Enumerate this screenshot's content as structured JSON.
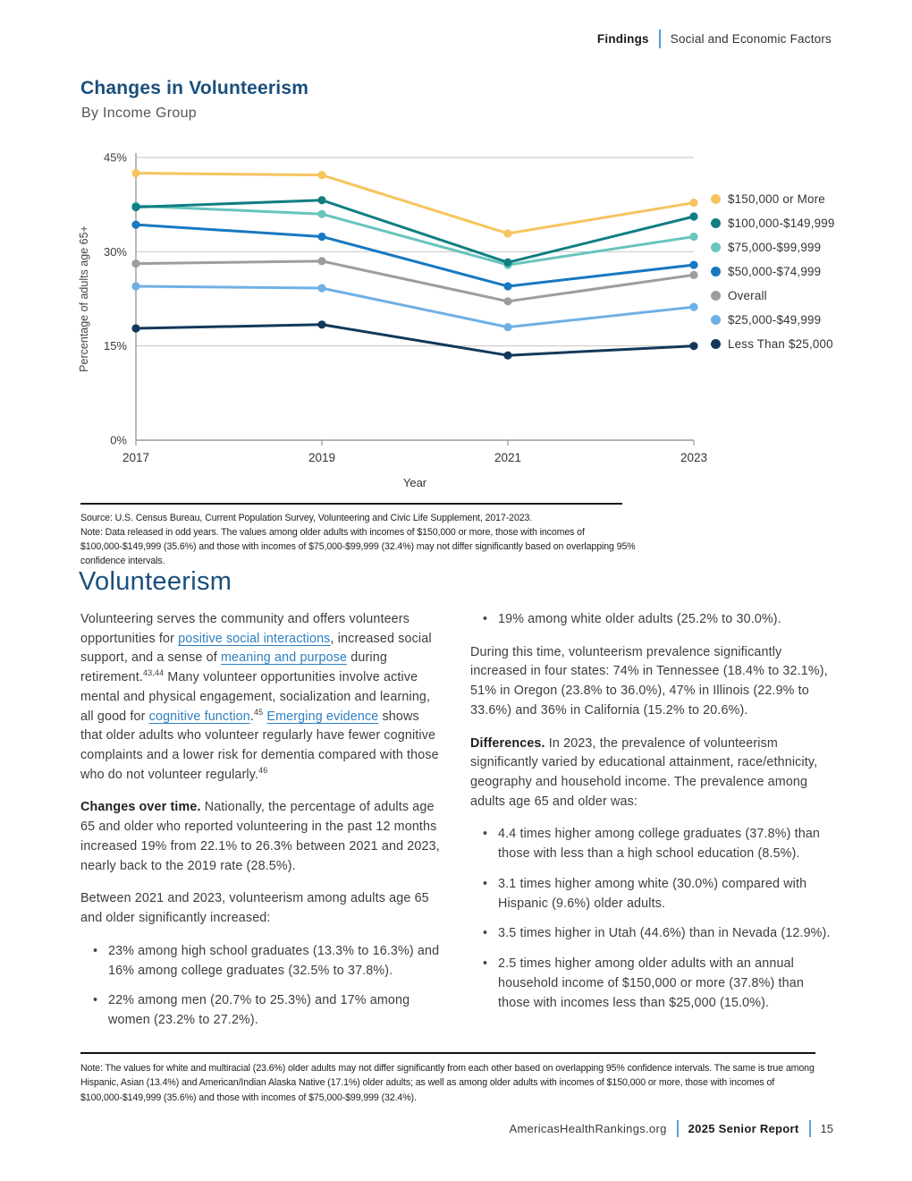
{
  "header": {
    "section": "Findings",
    "subsection": "Social and Economic Factors"
  },
  "chart": {
    "title": "Changes in Volunteerism",
    "subtitle": "By Income Group",
    "source_line": "Source: U.S. Census Bureau, Current Population Survey, Volunteering and Civic Life Supplement, 2017-2023.",
    "note_line": "Note: Data released in odd years. The values among older adults with incomes of $150,000 or more, those with incomes of $100,000-$149,999 (35.6%) and those with incomes of $75,000-$99,999 (32.4%) may not differ significantly based on overlapping 95% confidence intervals."
  },
  "chart_data": {
    "type": "line",
    "x": [
      2017,
      2019,
      2021,
      2023
    ],
    "x_labels": [
      "2017",
      "2019",
      "2021",
      "2023"
    ],
    "xlabel": "Year",
    "ylabel": "Percentage of adults age 65+",
    "ylim": [
      0,
      45
    ],
    "yticks": [
      0,
      15,
      30,
      45
    ],
    "ytick_labels": [
      "0%",
      "15%",
      "30%",
      "45%"
    ],
    "grid": "horizontal",
    "legend_position": "right",
    "series": [
      {
        "name": "$150,000 or More",
        "color": "#F6C45E",
        "values": [
          42.5,
          42.2,
          32.9,
          37.8
        ]
      },
      {
        "name": "$100,000-$149,999",
        "color": "#0F7E83",
        "values": [
          37.1,
          38.2,
          28.3,
          35.6
        ]
      },
      {
        "name": "$75,000-$99,999",
        "color": "#68C4BD",
        "values": [
          37.3,
          36.0,
          27.9,
          32.4
        ]
      },
      {
        "name": "$50,000-$74,999",
        "color": "#1878C0",
        "values": [
          34.3,
          32.4,
          24.5,
          27.9
        ]
      },
      {
        "name": "Overall",
        "color": "#9D9D9D",
        "values": [
          28.1,
          28.5,
          22.1,
          26.3
        ]
      },
      {
        "name": "$25,000-$49,999",
        "color": "#6FB0E5",
        "values": [
          24.5,
          24.2,
          18.0,
          21.2
        ]
      },
      {
        "name": "Less Than $25,000",
        "color": "#12395B",
        "values": [
          17.8,
          18.4,
          13.5,
          15.0
        ]
      }
    ]
  },
  "article": {
    "title": "Volunteerism",
    "left": [
      {
        "type": "p",
        "segments": [
          {
            "t": "Volunteering serves the community and offers volunteers opportunities for "
          },
          {
            "t": "positive social interactions",
            "link": true
          },
          {
            "t": ", increased social support, and a sense of "
          },
          {
            "t": "meaning and purpose",
            "link": true
          },
          {
            "t": " during retirement."
          },
          {
            "t": "43,44",
            "sup": true
          },
          {
            "t": " Many volunteer opportunities involve active mental and physical engagement, socialization and learning, all good for "
          },
          {
            "t": "cognitive function",
            "link": true
          },
          {
            "t": "."
          },
          {
            "t": "45",
            "sup": true
          },
          {
            "t": " "
          },
          {
            "t": "Emerging evidence",
            "link": true
          },
          {
            "t": " shows that older adults who volunteer regularly have fewer cognitive complaints and a lower risk for dementia compared with those who do not volunteer regularly."
          },
          {
            "t": "46",
            "sup": true
          }
        ]
      },
      {
        "type": "p",
        "segments": [
          {
            "t": "Changes over time.",
            "b": true
          },
          {
            "t": " Nationally, the percentage of adults age 65 and older who reported volunteering in the past 12 months increased 19% from 22.1% to 26.3% between 2021 and 2023, nearly back to the 2019 rate (28.5%)."
          }
        ]
      },
      {
        "type": "p",
        "segments": [
          {
            "t": "Between 2021 and 2023, volunteerism among adults age 65 and older significantly increased:"
          }
        ]
      },
      {
        "type": "bullets",
        "items": [
          [
            {
              "t": "23% among high school graduates (13.3% to 16.3%) and 16% among college graduates (32.5% to 37.8%)."
            }
          ],
          [
            {
              "t": "22% among men (20.7% to 25.3%) and 17% among women (23.2% to 27.2%)."
            }
          ]
        ]
      }
    ],
    "right": [
      {
        "type": "bullets",
        "items": [
          [
            {
              "t": "19% among white older adults (25.2% to 30.0%)."
            }
          ]
        ]
      },
      {
        "type": "p",
        "segments": [
          {
            "t": "During this time, volunteerism prevalence significantly increased in four states: 74% in Tennessee (18.4% to 32.1%), 51% in Oregon (23.8% to 36.0%), 47% in Illinois (22.9% to 33.6%) and 36% in California (15.2% to 20.6%)."
          }
        ]
      },
      {
        "type": "p",
        "segments": [
          {
            "t": "Differences.",
            "b": true
          },
          {
            "t": " In 2023, the prevalence of volunteerism significantly varied by educational attainment, race/ethnicity, geography and household income. The prevalence among adults age 65 and older was:"
          }
        ]
      },
      {
        "type": "bullets",
        "items": [
          [
            {
              "t": "4.4 times higher among college graduates (37.8%) than those with less than a high school education (8.5%)."
            }
          ],
          [
            {
              "t": "3.1 times higher among white (30.0%) compared with Hispanic (9.6%) older adults."
            }
          ],
          [
            {
              "t": "3.5 times higher in Utah (44.6%) than in Nevada (12.9%)."
            }
          ],
          [
            {
              "t": "2.5 times higher among older adults with an annual household income of $150,000 or more (37.8%) than those with incomes less than $25,000 (15.0%)."
            }
          ]
        ]
      }
    ]
  },
  "footnote": "Note: The values for white and multiracial (23.6%) older adults may not differ significantly from each other based on overlapping 95% confidence intervals. The same is true among Hispanic, Asian (13.4%) and American/Indian Alaska Native (17.1%) older adults; as well as among older adults with incomes of $150,000 or more, those with incomes of $100,000-$149,999 (35.6%) and those with incomes of $75,000-$99,999 (32.4%).",
  "footer": {
    "site": "AmericasHealthRankings.org",
    "report": "2025 Senior Report",
    "page": "15"
  }
}
